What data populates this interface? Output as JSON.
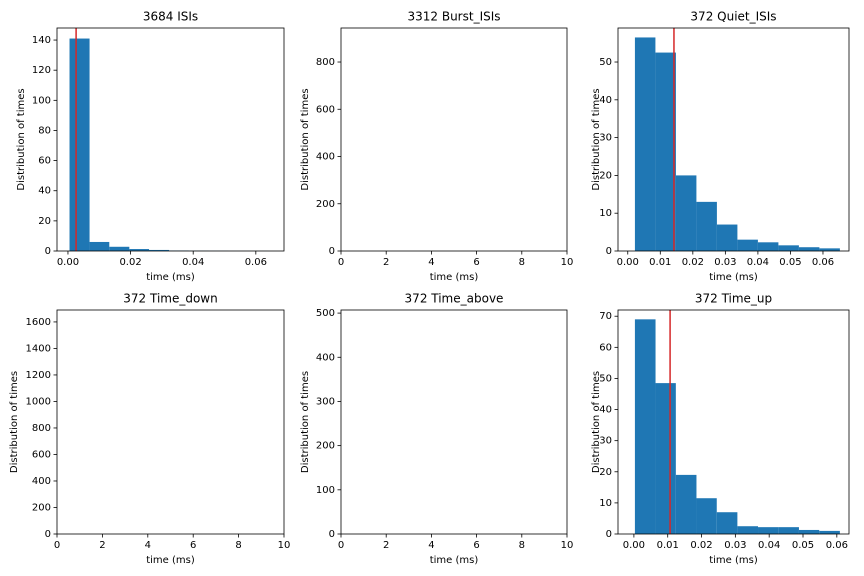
{
  "chart_data": [
    {
      "type": "histogram",
      "title": "3684 ISIs",
      "xlabel": "time (ms)",
      "ylabel": "Distribution of times",
      "color": "#1f77b4",
      "bins": [
        0.0005,
        0.0069,
        0.0132,
        0.0196,
        0.0259,
        0.0323,
        0.0386,
        0.045,
        0.0513,
        0.0577,
        0.064
      ],
      "values": [
        141,
        6,
        2.8,
        1.3,
        0.7,
        0.3,
        0.15,
        0.1,
        0.05,
        0.05
      ],
      "vline": {
        "x": 0.0026,
        "color": "#d62728"
      },
      "xlim": [
        -0.0035,
        0.069
      ],
      "ylim": [
        0,
        148
      ],
      "xticks": [
        {
          "value": 0,
          "label": "0.00"
        },
        {
          "value": 0.02,
          "label": "0.02"
        },
        {
          "value": 0.04,
          "label": "0.04"
        },
        {
          "value": 0.06,
          "label": "0.06"
        }
      ],
      "yticks": [
        0,
        20,
        40,
        60,
        80,
        100,
        120,
        140
      ]
    },
    {
      "type": "histogram",
      "title": "3312 Burst_ISIs",
      "xlabel": "time (ms)",
      "ylabel": "Distribution of times",
      "xlim": [
        0,
        10
      ],
      "ylim": [
        0,
        944
      ],
      "xticks": [
        0,
        2,
        4,
        6,
        8,
        10
      ],
      "yticks": [
        0,
        200,
        400,
        600,
        800
      ]
    },
    {
      "type": "histogram",
      "title": "372 Quiet_ISIs",
      "xlabel": "time (ms)",
      "ylabel": "Distribution of times",
      "color": "#1f77b4",
      "bins": [
        0.0022,
        0.0085,
        0.0148,
        0.0211,
        0.0274,
        0.0337,
        0.04,
        0.0463,
        0.0526,
        0.0589,
        0.0652
      ],
      "values": [
        56.5,
        52.5,
        20,
        13,
        7,
        3,
        2.3,
        1.5,
        1,
        0.7
      ],
      "vline": {
        "x": 0.0142,
        "color": "#d62728"
      },
      "xlim": [
        -0.003,
        0.068
      ],
      "ylim": [
        0,
        59
      ],
      "xticks": [
        {
          "value": 0,
          "label": "0.00"
        },
        {
          "value": 0.01,
          "label": "0.01"
        },
        {
          "value": 0.02,
          "label": "0.02"
        },
        {
          "value": 0.03,
          "label": "0.03"
        },
        {
          "value": 0.04,
          "label": "0.04"
        },
        {
          "value": 0.05,
          "label": "0.05"
        },
        {
          "value": 0.06,
          "label": "0.06"
        }
      ],
      "yticks": [
        0,
        10,
        20,
        30,
        40,
        50
      ]
    },
    {
      "type": "histogram",
      "title": "372 Time_down",
      "xlabel": "time (ms)",
      "ylabel": "Distribution of times",
      "xlim": [
        0,
        10
      ],
      "ylim": [
        0,
        1690
      ],
      "xticks": [
        0,
        2,
        4,
        6,
        8,
        10
      ],
      "yticks": [
        0,
        200,
        400,
        600,
        800,
        1000,
        1200,
        1400,
        1600
      ]
    },
    {
      "type": "histogram",
      "title": "372 Time_above",
      "xlabel": "time (ms)",
      "ylabel": "Distribution of times",
      "xlim": [
        0,
        10
      ],
      "ylim": [
        0,
        507
      ],
      "xticks": [
        0,
        2,
        4,
        6,
        8,
        10
      ],
      "yticks": [
        0,
        100,
        200,
        300,
        400,
        500
      ]
    },
    {
      "type": "histogram",
      "title": "372 Time_up",
      "xlabel": "time (ms)",
      "ylabel": "Distribution of times",
      "color": "#1f77b4",
      "bins": [
        0.0003,
        0.0064,
        0.0124,
        0.0185,
        0.0245,
        0.0306,
        0.0367,
        0.0427,
        0.0488,
        0.0548,
        0.0609
      ],
      "values": [
        69,
        48.5,
        19,
        11.5,
        7,
        2.5,
        2.2,
        2.2,
        1.3,
        1
      ],
      "vline": {
        "x": 0.0107,
        "color": "#d62728"
      },
      "xlim": [
        -0.0047,
        0.0636
      ],
      "ylim": [
        0,
        72
      ],
      "xticks": [
        {
          "value": 0,
          "label": "0.00"
        },
        {
          "value": 0.01,
          "label": "0.01"
        },
        {
          "value": 0.02,
          "label": "0.02"
        },
        {
          "value": 0.03,
          "label": "0.03"
        },
        {
          "value": 0.04,
          "label": "0.04"
        },
        {
          "value": 0.05,
          "label": "0.05"
        },
        {
          "value": 0.06,
          "label": "0.06"
        }
      ],
      "yticks": [
        0,
        10,
        20,
        30,
        40,
        50,
        60,
        70
      ]
    }
  ]
}
